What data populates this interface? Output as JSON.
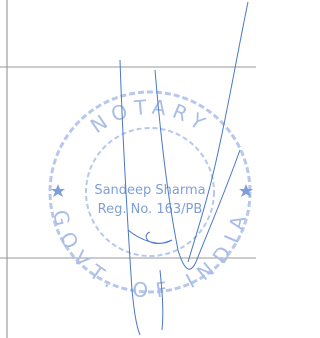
{
  "stamp": {
    "ring_top": "NOTARY",
    "ring_bottom": "GOVT. OF INDIA",
    "name": "Sandeep Sharma",
    "registration": "Reg. No. 163/PB"
  }
}
